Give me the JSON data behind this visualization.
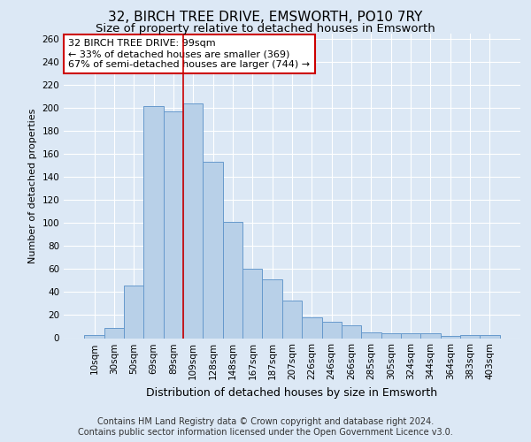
{
  "title": "32, BIRCH TREE DRIVE, EMSWORTH, PO10 7RY",
  "subtitle": "Size of property relative to detached houses in Emsworth",
  "xlabel": "Distribution of detached houses by size in Emsworth",
  "ylabel": "Number of detached properties",
  "bar_labels": [
    "10sqm",
    "30sqm",
    "50sqm",
    "69sqm",
    "89sqm",
    "109sqm",
    "128sqm",
    "148sqm",
    "167sqm",
    "187sqm",
    "207sqm",
    "226sqm",
    "246sqm",
    "266sqm",
    "285sqm",
    "305sqm",
    "324sqm",
    "344sqm",
    "364sqm",
    "383sqm",
    "403sqm"
  ],
  "bar_values": [
    3,
    9,
    46,
    202,
    197,
    204,
    153,
    101,
    60,
    51,
    33,
    18,
    14,
    11,
    5,
    4,
    4,
    4,
    2,
    3,
    3
  ],
  "bar_color": "#b8d0e8",
  "bar_edge_color": "#6699cc",
  "background_color": "#dce8f5",
  "plot_bg_color": "#dce8f5",
  "grid_color": "#ffffff",
  "property_line_bar_index": 4,
  "property_line_color": "#cc0000",
  "annotation_text": "32 BIRCH TREE DRIVE: 99sqm\n← 33% of detached houses are smaller (369)\n67% of semi-detached houses are larger (744) →",
  "annotation_box_color": "#ffffff",
  "annotation_box_edge_color": "#cc0000",
  "footer_line1": "Contains HM Land Registry data © Crown copyright and database right 2024.",
  "footer_line2": "Contains public sector information licensed under the Open Government Licence v3.0.",
  "ylim": [
    0,
    265
  ],
  "yticks": [
    0,
    20,
    40,
    60,
    80,
    100,
    120,
    140,
    160,
    180,
    200,
    220,
    240,
    260
  ],
  "title_fontsize": 11,
  "subtitle_fontsize": 9.5,
  "xlabel_fontsize": 9,
  "ylabel_fontsize": 8,
  "tick_fontsize": 7.5,
  "annotation_fontsize": 8,
  "footer_fontsize": 7
}
